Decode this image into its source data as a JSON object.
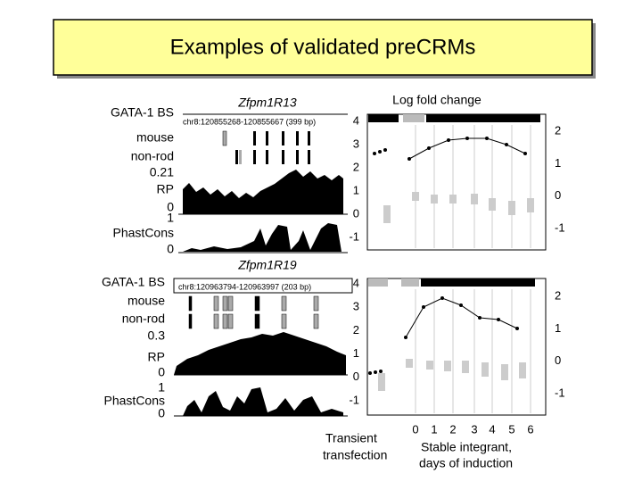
{
  "title": "Examples of validated preCRMs",
  "tracks": [
    {
      "gata_label": "GATA-1 BS",
      "name": "Zfpm1R13",
      "coords": "chr8:120855268-120855667 (399 bp)",
      "rows": [
        "mouse",
        "non-rod"
      ],
      "rp_max": 0.21,
      "rp_label": "RP",
      "rp_min": 0,
      "pc_max": 1,
      "pc_label": "PhastCons",
      "pc_min": 0
    },
    {
      "gata_label": "GATA-1 BS",
      "name": "Zfpm1R19",
      "coords": "chr8:120963794-120963997 (203 bp)",
      "rows": [
        "mouse",
        "non-rod"
      ],
      "rp_max": 0.3,
      "rp_label": "RP",
      "rp_min": 0,
      "pc_max": 1,
      "pc_label": "PhastCons",
      "pc_min": 0
    }
  ],
  "fold_change": {
    "title": "Log fold change",
    "panels": [
      {
        "left_ticks": [
          4,
          3,
          2,
          1,
          0,
          -1
        ],
        "right_ticks": [
          2,
          1,
          0,
          -1
        ]
      },
      {
        "left_ticks": [
          4,
          3,
          2,
          1,
          0,
          -1
        ],
        "right_ticks": [
          2,
          1,
          0,
          -1
        ]
      }
    ],
    "x_ticks": [
      0,
      1,
      2,
      3,
      4,
      5,
      6
    ],
    "x_label_left": [
      "Transient",
      "transfection"
    ],
    "x_label_right": [
      "Stable integrant,",
      "days of induction"
    ]
  }
}
